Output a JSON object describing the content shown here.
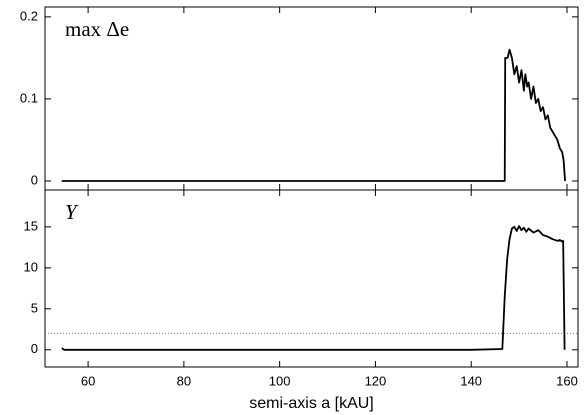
{
  "chart_data": [
    {
      "type": "line",
      "label": "max Δe",
      "x": [
        54.5,
        147,
        147.1,
        147.6,
        148,
        148.5,
        149,
        149.5,
        150,
        150.5,
        151,
        151.3,
        151.7,
        152,
        152.5,
        153,
        153.5,
        154,
        154.5,
        155,
        155.5,
        156,
        156.5,
        157,
        157.5,
        158,
        158.5,
        159,
        159.3,
        159.6
      ],
      "values": [
        0,
        0,
        0.15,
        0.15,
        0.16,
        0.15,
        0.13,
        0.14,
        0.12,
        0.135,
        0.11,
        0.13,
        0.115,
        0.12,
        0.1,
        0.115,
        0.095,
        0.1,
        0.085,
        0.09,
        0.075,
        0.08,
        0.065,
        0.06,
        0.055,
        0.05,
        0.04,
        0.035,
        0.025,
        0
      ],
      "color": "#000000",
      "xlim": [
        51,
        162.3
      ],
      "xticks": [
        60,
        80,
        100,
        120,
        140,
        160
      ],
      "ylim": [
        -0.011,
        0.212
      ],
      "yticks": [
        0,
        0.1,
        0.2
      ]
    },
    {
      "type": "line",
      "label": "Y",
      "x_label": "semi-axis a [kAU]",
      "x": [
        54.5,
        55,
        100,
        140,
        146.5,
        147,
        147.5,
        148,
        148.5,
        149,
        149.5,
        150,
        150.5,
        151,
        151.5,
        152,
        153,
        154,
        155,
        156,
        157,
        158,
        158.5,
        159,
        159.2,
        159.5
      ],
      "values": [
        0.2,
        0,
        0,
        0,
        0.1,
        6.5,
        11,
        13.5,
        14.8,
        15,
        14.5,
        15.1,
        14.6,
        14.9,
        14.4,
        14.8,
        14.3,
        14.6,
        14,
        13.8,
        13.5,
        13.3,
        13.4,
        13.2,
        13.3,
        0
      ],
      "color": "#000000",
      "hline": 2,
      "xlim": [
        51,
        162.3
      ],
      "xticks": [
        60,
        80,
        100,
        120,
        140,
        160
      ],
      "ylim": [
        -2.1,
        19.5
      ],
      "yticks": [
        0,
        5,
        10,
        15
      ]
    }
  ]
}
